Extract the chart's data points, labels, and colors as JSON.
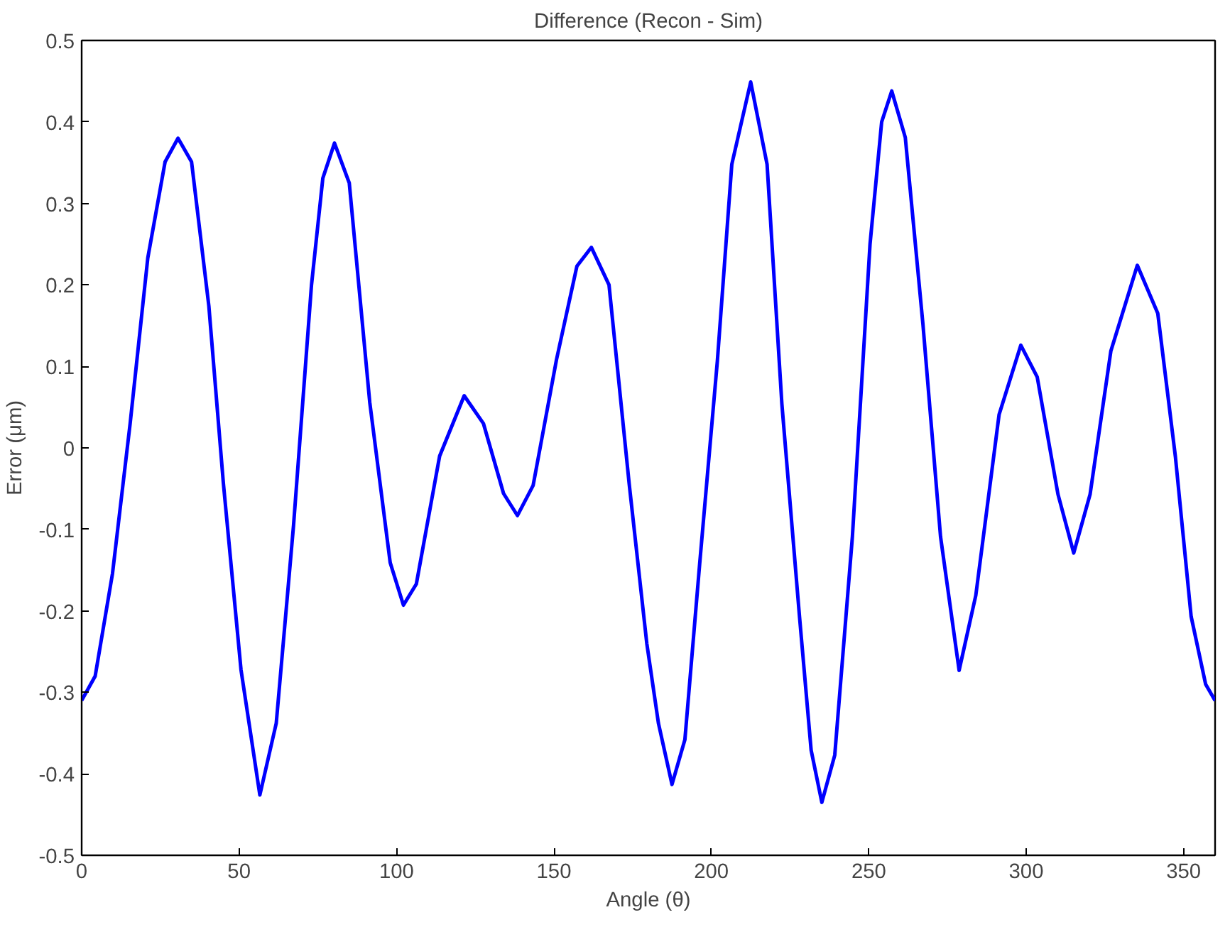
{
  "chart_data": {
    "type": "line",
    "title": "Difference (Recon - Sim)",
    "xlabel": "Angle (θ)",
    "ylabel": "Error (μm)",
    "xlim": [
      0,
      360
    ],
    "ylim": [
      -0.5,
      0.5
    ],
    "xticks": [
      0,
      50,
      100,
      150,
      200,
      250,
      300,
      350
    ],
    "yticks": [
      -0.5,
      -0.4,
      -0.3,
      -0.2,
      -0.1,
      0,
      0.1,
      0.2,
      0.3,
      0.4,
      0.5
    ],
    "grid": false,
    "marker": "none",
    "line_style": "solid",
    "series": [
      {
        "color": "#0000ff",
        "x": [
          0,
          4.3,
          9.8,
          15.4,
          21,
          26.5,
          30.6,
          34.9,
          40.4,
          45,
          50.6,
          56.6,
          61.8,
          67.3,
          73,
          76.6,
          80.3,
          85,
          91.5,
          98,
          102.2,
          106.3,
          113.7,
          121.5,
          127.6,
          134,
          138.4,
          143.4,
          150.8,
          157.3,
          161.9,
          167.5,
          173.9,
          179.5,
          183.2,
          187.5,
          191.6,
          196.3,
          201.9,
          206.5,
          212.5,
          217.7,
          222.4,
          228,
          231.7,
          235.1,
          239.2,
          244.8,
          250.4,
          254.1,
          257.3,
          261.6,
          267.2,
          272.8,
          278.7,
          284,
          291.4,
          298.3,
          303.5,
          310.1,
          315.1,
          320.3,
          326.9,
          335.3,
          341.8,
          347.4,
          352.4,
          357,
          360
        ],
        "values": [
          -0.31,
          -0.28,
          -0.154,
          0.03,
          0.233,
          0.351,
          0.38,
          0.351,
          0.174,
          -0.043,
          -0.272,
          -0.426,
          -0.338,
          -0.095,
          0.2,
          0.331,
          0.374,
          0.325,
          0.056,
          -0.141,
          -0.193,
          -0.167,
          -0.01,
          0.064,
          0.03,
          -0.056,
          -0.083,
          -0.046,
          0.108,
          0.223,
          0.246,
          0.2,
          -0.044,
          -0.24,
          -0.338,
          -0.413,
          -0.358,
          -0.142,
          0.106,
          0.348,
          0.449,
          0.348,
          0.054,
          -0.207,
          -0.371,
          -0.435,
          -0.377,
          -0.109,
          0.25,
          0.4,
          0.438,
          0.381,
          0.152,
          -0.109,
          -0.273,
          -0.181,
          0.041,
          0.126,
          0.087,
          -0.057,
          -0.129,
          -0.057,
          0.119,
          0.224,
          0.165,
          -0.011,
          -0.207,
          -0.29,
          -0.31
        ]
      }
    ]
  }
}
